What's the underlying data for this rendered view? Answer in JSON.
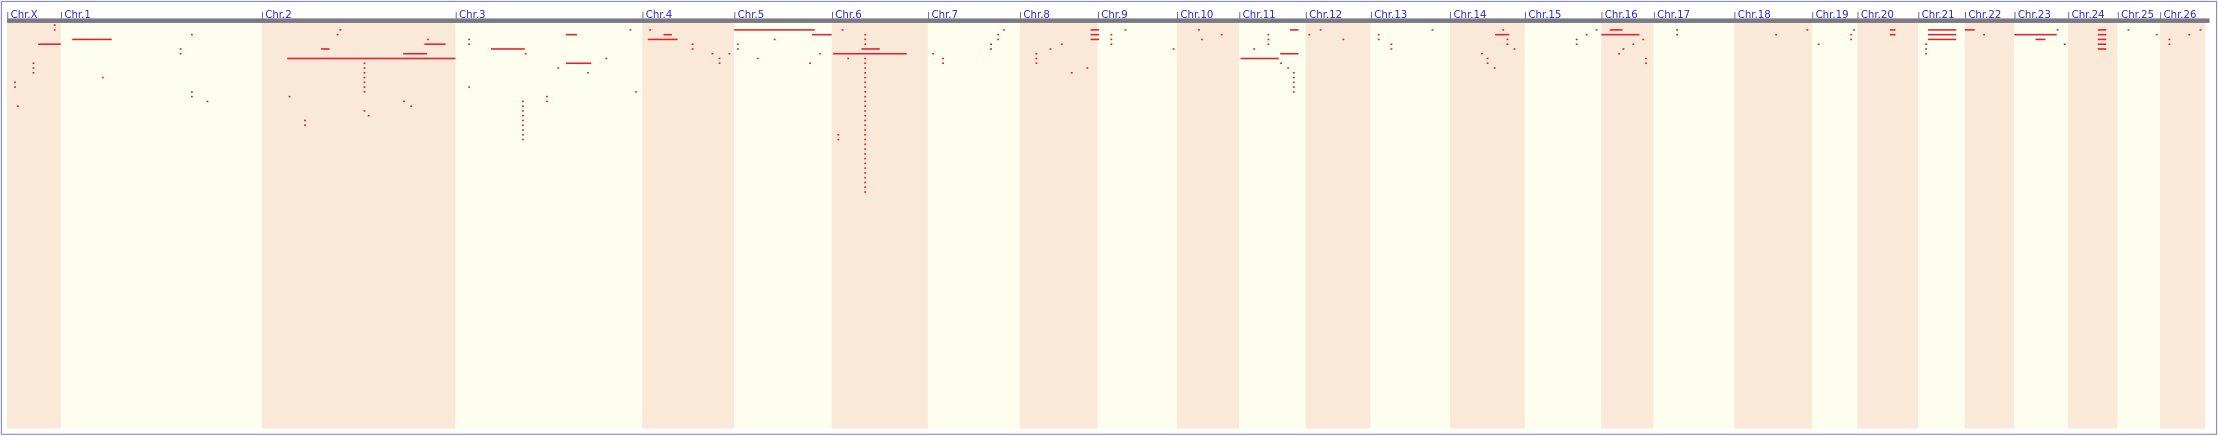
{
  "chart_data": {
    "type": "genome",
    "categories": [
      "Chr.X",
      "Chr.1",
      "Chr.2",
      "Chr.3",
      "Chr.4",
      "Chr.5",
      "Chr.6",
      "Chr.7",
      "Chr.8",
      "Chr.9",
      "Chr.10",
      "Chr.11",
      "Chr.12",
      "Chr.13",
      "Chr.14",
      "Chr.15",
      "Chr.16",
      "Chr.17",
      "Chr.18",
      "Chr.19",
      "Chr.20",
      "Chr.21",
      "Chr.22",
      "Chr.23",
      "Chr.24",
      "Chr.25",
      "Chr.26"
    ],
    "lengths": [
      38,
      142,
      137,
      132,
      65,
      69,
      68,
      65,
      55,
      56,
      44,
      47,
      46,
      56,
      53,
      54,
      37,
      57,
      55,
      32,
      43,
      33,
      35,
      38,
      35,
      30,
      32
    ],
    "band_colors": [
      "#fae9d8",
      "#fefeee"
    ],
    "feature_color": "#e0202c",
    "features": [
      [
        0,
        33,
        33,
        0
      ],
      [
        0,
        33,
        33,
        1
      ],
      [
        0,
        22,
        38,
        4
      ],
      [
        0,
        18,
        18,
        8
      ],
      [
        0,
        18,
        18,
        9
      ],
      [
        0,
        18,
        18,
        10
      ],
      [
        0,
        5,
        5,
        12
      ],
      [
        0,
        5,
        5,
        13
      ],
      [
        0,
        7,
        7,
        17
      ],
      [
        1,
        8,
        36,
        3
      ],
      [
        1,
        29,
        29,
        11
      ],
      [
        1,
        92,
        92,
        2
      ],
      [
        1,
        84,
        84,
        5
      ],
      [
        1,
        84,
        84,
        6
      ],
      [
        1,
        92,
        92,
        14
      ],
      [
        1,
        92,
        92,
        15
      ],
      [
        1,
        103,
        103,
        16
      ],
      [
        2,
        55,
        55,
        1
      ],
      [
        2,
        53,
        53,
        2
      ],
      [
        2,
        42,
        48,
        5
      ],
      [
        2,
        18,
        137,
        7
      ],
      [
        2,
        72,
        72,
        8
      ],
      [
        2,
        72,
        72,
        9
      ],
      [
        2,
        72,
        72,
        10
      ],
      [
        2,
        72,
        72,
        11
      ],
      [
        2,
        72,
        72,
        12
      ],
      [
        2,
        72,
        72,
        13
      ],
      [
        2,
        72,
        72,
        14
      ],
      [
        2,
        117,
        117,
        3
      ],
      [
        2,
        100,
        117,
        6
      ],
      [
        2,
        115,
        130,
        4
      ],
      [
        2,
        19,
        19,
        15
      ],
      [
        2,
        30,
        30,
        20
      ],
      [
        2,
        30,
        30,
        21
      ],
      [
        2,
        72,
        72,
        18
      ],
      [
        2,
        75,
        75,
        19
      ],
      [
        2,
        100,
        100,
        16
      ],
      [
        2,
        105,
        105,
        17
      ],
      [
        3,
        9,
        9,
        3
      ],
      [
        3,
        9,
        9,
        4
      ],
      [
        3,
        25,
        49,
        5
      ],
      [
        3,
        49,
        49,
        6
      ],
      [
        3,
        78,
        86,
        2
      ],
      [
        3,
        78,
        96,
        8
      ],
      [
        3,
        106,
        106,
        7
      ],
      [
        3,
        123,
        123,
        1
      ],
      [
        3,
        9,
        9,
        13
      ],
      [
        3,
        47,
        47,
        16
      ],
      [
        3,
        47,
        47,
        17
      ],
      [
        3,
        47,
        47,
        18
      ],
      [
        3,
        47,
        47,
        19
      ],
      [
        3,
        47,
        47,
        20
      ],
      [
        3,
        47,
        47,
        21
      ],
      [
        3,
        47,
        47,
        22
      ],
      [
        3,
        47,
        47,
        23
      ],
      [
        3,
        47,
        47,
        24
      ],
      [
        3,
        64,
        64,
        15
      ],
      [
        3,
        64,
        64,
        16
      ],
      [
        3,
        72,
        72,
        9
      ],
      [
        3,
        93,
        93,
        10
      ],
      [
        3,
        127,
        127,
        14
      ],
      [
        4,
        5,
        5,
        1
      ],
      [
        4,
        4,
        25,
        3
      ],
      [
        4,
        15,
        21,
        2
      ],
      [
        4,
        35,
        35,
        4
      ],
      [
        4,
        35,
        35,
        5
      ],
      [
        4,
        49,
        49,
        6
      ],
      [
        4,
        54,
        54,
        7
      ],
      [
        4,
        54,
        54,
        8
      ],
      [
        4,
        61,
        61,
        6
      ],
      [
        5,
        0,
        57,
        1
      ],
      [
        5,
        55,
        69,
        2
      ],
      [
        5,
        2,
        2,
        4
      ],
      [
        5,
        2,
        2,
        5
      ],
      [
        5,
        16,
        16,
        7
      ],
      [
        5,
        28,
        28,
        3
      ],
      [
        5,
        53,
        53,
        8
      ],
      [
        5,
        60,
        60,
        6
      ],
      [
        6,
        7,
        7,
        1
      ],
      [
        6,
        1,
        53,
        6
      ],
      [
        6,
        21,
        34,
        5
      ],
      [
        6,
        4,
        4,
        23
      ],
      [
        6,
        4,
        4,
        24
      ],
      [
        6,
        11,
        11,
        7
      ],
      [
        6,
        23,
        23,
        2
      ],
      [
        6,
        23,
        23,
        3
      ],
      [
        6,
        23,
        23,
        4
      ],
      [
        6,
        23,
        23,
        7
      ],
      [
        6,
        23,
        23,
        8
      ],
      [
        6,
        23,
        23,
        9
      ],
      [
        6,
        23,
        23,
        10
      ],
      [
        6,
        23,
        23,
        11
      ],
      [
        6,
        23,
        23,
        12
      ],
      [
        6,
        23,
        23,
        13
      ],
      [
        6,
        23,
        23,
        14
      ],
      [
        6,
        23,
        23,
        15
      ],
      [
        6,
        23,
        23,
        16
      ],
      [
        6,
        23,
        23,
        17
      ],
      [
        6,
        23,
        23,
        18
      ],
      [
        6,
        23,
        23,
        19
      ],
      [
        6,
        23,
        23,
        20
      ],
      [
        6,
        23,
        23,
        21
      ],
      [
        6,
        23,
        23,
        22
      ],
      [
        6,
        23,
        23,
        23
      ],
      [
        6,
        23,
        23,
        24
      ],
      [
        6,
        23,
        23,
        25
      ],
      [
        6,
        23,
        23,
        26
      ],
      [
        6,
        23,
        23,
        27
      ],
      [
        6,
        23,
        23,
        28
      ],
      [
        6,
        23,
        23,
        29
      ],
      [
        6,
        23,
        23,
        30
      ],
      [
        6,
        23,
        23,
        31
      ],
      [
        6,
        23,
        23,
        32
      ],
      [
        6,
        23,
        23,
        33
      ],
      [
        6,
        23,
        23,
        34
      ],
      [
        6,
        23,
        23,
        35
      ],
      [
        7,
        3,
        3,
        6
      ],
      [
        7,
        10,
        10,
        7
      ],
      [
        7,
        10,
        10,
        8
      ],
      [
        7,
        44,
        44,
        4
      ],
      [
        7,
        44,
        44,
        5
      ],
      [
        7,
        49,
        49,
        2
      ],
      [
        7,
        49,
        49,
        3
      ],
      [
        7,
        53,
        53,
        1
      ],
      [
        8,
        50,
        56,
        1
      ],
      [
        8,
        50,
        56,
        2
      ],
      [
        8,
        50,
        56,
        3
      ],
      [
        8,
        29,
        29,
        4
      ],
      [
        8,
        21,
        21,
        5
      ],
      [
        8,
        11,
        11,
        6
      ],
      [
        8,
        11,
        11,
        7
      ],
      [
        8,
        11,
        11,
        8
      ],
      [
        8,
        36,
        36,
        10
      ],
      [
        8,
        47,
        47,
        9
      ],
      [
        9,
        9,
        9,
        2
      ],
      [
        9,
        9,
        9,
        3
      ],
      [
        9,
        9,
        9,
        4
      ],
      [
        9,
        19,
        19,
        1
      ],
      [
        9,
        53,
        53,
        5
      ],
      [
        10,
        15,
        15,
        1
      ],
      [
        10,
        17,
        17,
        3
      ],
      [
        10,
        31,
        31,
        2
      ],
      [
        11,
        1,
        28,
        7
      ],
      [
        11,
        29,
        42,
        6
      ],
      [
        11,
        20,
        20,
        2
      ],
      [
        11,
        20,
        20,
        3
      ],
      [
        11,
        20,
        20,
        4
      ],
      [
        11,
        10,
        10,
        5
      ],
      [
        11,
        29,
        29,
        8
      ],
      [
        11,
        34,
        34,
        9
      ],
      [
        11,
        38,
        38,
        10
      ],
      [
        11,
        38,
        38,
        11
      ],
      [
        11,
        38,
        38,
        12
      ],
      [
        11,
        38,
        38,
        13
      ],
      [
        11,
        38,
        38,
        14
      ],
      [
        11,
        36,
        42,
        1
      ],
      [
        12,
        2,
        2,
        2
      ],
      [
        12,
        10,
        10,
        1
      ],
      [
        12,
        26,
        26,
        3
      ],
      [
        13,
        5,
        5,
        2
      ],
      [
        13,
        5,
        5,
        3
      ],
      [
        13,
        14,
        14,
        4
      ],
      [
        13,
        14,
        14,
        5
      ],
      [
        13,
        43,
        43,
        1
      ],
      [
        14,
        32,
        42,
        2
      ],
      [
        14,
        37,
        37,
        1
      ],
      [
        14,
        40,
        40,
        3
      ],
      [
        14,
        40,
        40,
        4
      ],
      [
        14,
        22,
        22,
        6
      ],
      [
        14,
        26,
        26,
        7
      ],
      [
        14,
        26,
        26,
        8
      ],
      [
        14,
        31,
        31,
        9
      ],
      [
        14,
        45,
        45,
        5
      ],
      [
        15,
        36,
        36,
        3
      ],
      [
        15,
        36,
        36,
        4
      ],
      [
        15,
        43,
        43,
        2
      ],
      [
        15,
        50,
        50,
        1
      ],
      [
        16,
        0,
        27,
        2
      ],
      [
        16,
        6,
        15,
        1
      ],
      [
        16,
        22,
        22,
        4
      ],
      [
        16,
        15,
        15,
        5
      ],
      [
        16,
        12,
        12,
        6
      ],
      [
        16,
        29,
        29,
        3
      ],
      [
        16,
        31,
        31,
        7
      ],
      [
        16,
        31,
        31,
        8
      ],
      [
        17,
        16,
        16,
        1
      ],
      [
        17,
        16,
        16,
        2
      ],
      [
        18,
        29,
        29,
        2
      ],
      [
        18,
        51,
        51,
        1
      ],
      [
        19,
        4,
        4,
        4
      ],
      [
        19,
        27,
        27,
        2
      ],
      [
        19,
        27,
        27,
        3
      ],
      [
        19,
        29,
        29,
        1
      ],
      [
        20,
        23,
        27,
        1
      ],
      [
        20,
        23,
        27,
        2
      ],
      [
        21,
        7,
        27,
        1
      ],
      [
        21,
        7,
        27,
        2
      ],
      [
        21,
        7,
        27,
        3
      ],
      [
        21,
        5,
        5,
        4
      ],
      [
        21,
        5,
        5,
        5
      ],
      [
        21,
        5,
        5,
        6
      ],
      [
        22,
        0,
        7,
        1
      ],
      [
        22,
        13,
        13,
        2
      ],
      [
        23,
        0,
        30,
        2
      ],
      [
        23,
        15,
        22,
        3
      ],
      [
        23,
        30,
        30,
        1
      ],
      [
        23,
        35,
        35,
        4
      ],
      [
        24,
        21,
        27,
        1
      ],
      [
        24,
        21,
        27,
        2
      ],
      [
        24,
        21,
        27,
        3
      ],
      [
        24,
        21,
        27,
        4
      ],
      [
        24,
        21,
        27,
        5
      ],
      [
        25,
        7,
        7,
        1
      ],
      [
        25,
        27,
        27,
        2
      ],
      [
        26,
        6,
        6,
        3
      ],
      [
        26,
        6,
        6,
        4
      ],
      [
        26,
        20,
        20,
        2
      ],
      [
        26,
        28,
        28,
        1
      ]
    ]
  }
}
